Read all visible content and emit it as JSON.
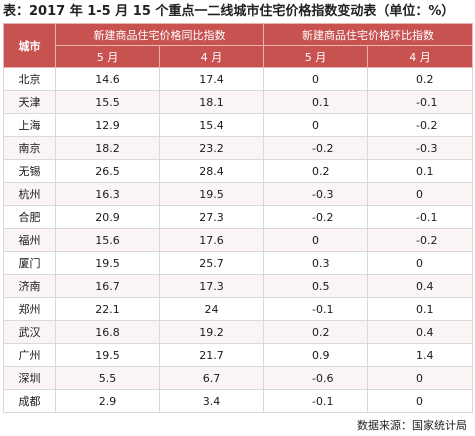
{
  "title": "表：2017 年 1-5 月 15 个重点一二线城市住宅价格指数变动表（单位：%）",
  "header": {
    "city": "城市",
    "group_yoy": "新建商品住宅价格同比指数",
    "group_mom": "新建商品住宅价格环比指数",
    "may": "5 月",
    "apr": "4 月"
  },
  "rows": [
    {
      "city": "北京",
      "yoy_may": "14.6",
      "yoy_apr": "17.4",
      "mom_may": "0",
      "mom_apr": "0.2"
    },
    {
      "city": "天津",
      "yoy_may": "15.5",
      "yoy_apr": "18.1",
      "mom_may": "0.1",
      "mom_apr": "-0.1"
    },
    {
      "city": "上海",
      "yoy_may": "12.9",
      "yoy_apr": "15.4",
      "mom_may": "0",
      "mom_apr": "-0.2"
    },
    {
      "city": "南京",
      "yoy_may": "18.2",
      "yoy_apr": "23.2",
      "mom_may": "-0.2",
      "mom_apr": "-0.3"
    },
    {
      "city": "无锡",
      "yoy_may": "26.5",
      "yoy_apr": "28.4",
      "mom_may": "0.2",
      "mom_apr": "0.1"
    },
    {
      "city": "杭州",
      "yoy_may": "16.3",
      "yoy_apr": "19.5",
      "mom_may": "-0.3",
      "mom_apr": "0"
    },
    {
      "city": "合肥",
      "yoy_may": "20.9",
      "yoy_apr": "27.3",
      "mom_may": "-0.2",
      "mom_apr": "-0.1"
    },
    {
      "city": "福州",
      "yoy_may": "15.6",
      "yoy_apr": "17.6",
      "mom_may": "0",
      "mom_apr": "-0.2"
    },
    {
      "city": "厦门",
      "yoy_may": "19.5",
      "yoy_apr": "25.7",
      "mom_may": "0.3",
      "mom_apr": "0"
    },
    {
      "city": "济南",
      "yoy_may": "16.7",
      "yoy_apr": "17.3",
      "mom_may": "0.5",
      "mom_apr": "0.4"
    },
    {
      "city": "郑州",
      "yoy_may": "22.1",
      "yoy_apr": "24",
      "mom_may": "-0.1",
      "mom_apr": "0.1"
    },
    {
      "city": "武汉",
      "yoy_may": "16.8",
      "yoy_apr": "19.2",
      "mom_may": "0.2",
      "mom_apr": "0.4"
    },
    {
      "city": "广州",
      "yoy_may": "19.5",
      "yoy_apr": "21.7",
      "mom_may": "0.9",
      "mom_apr": "1.4"
    },
    {
      "city": "深圳",
      "yoy_may": "5.5",
      "yoy_apr": "6.7",
      "mom_may": "-0.6",
      "mom_apr": "0"
    },
    {
      "city": "成都",
      "yoy_may": "2.9",
      "yoy_apr": "3.4",
      "mom_may": "-0.1",
      "mom_apr": "0"
    }
  ],
  "source": "数据来源：国家统计局",
  "colors": {
    "header_bg": "#c7524f",
    "header_text": "#ffffff",
    "grid": "#d8d8d8"
  }
}
